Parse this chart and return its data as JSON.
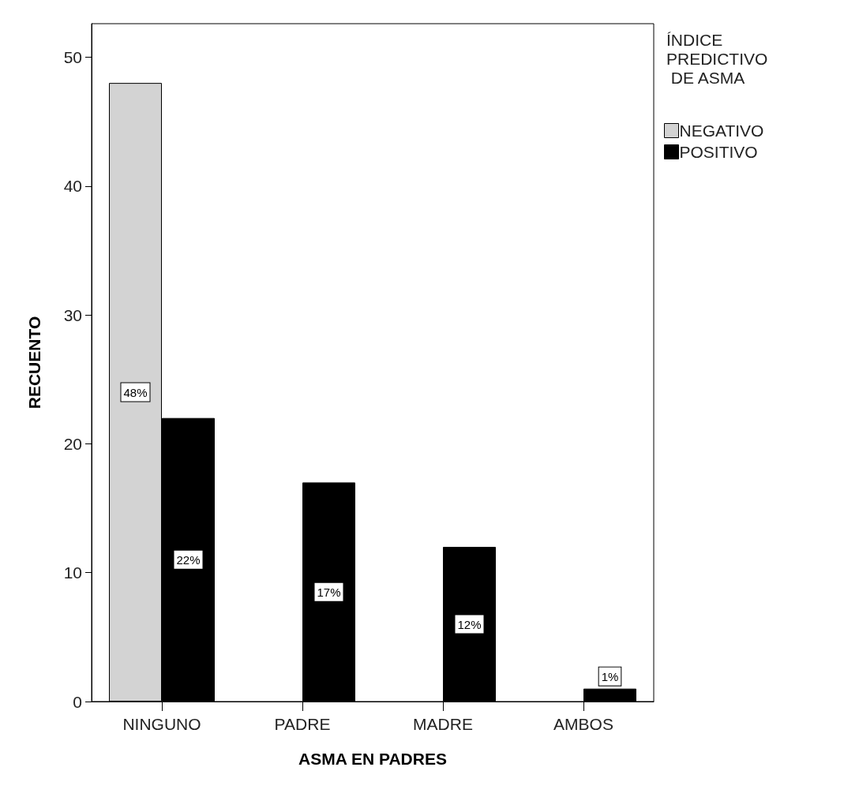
{
  "chart_data": {
    "type": "bar",
    "xlabel": "ASMA EN PADRES",
    "ylabel": "RECUENTO",
    "legend_title": "ÍNDICE PREDICTIVO DE ASMA",
    "categories": [
      "NINGUNO",
      "PADRE",
      "MADRE",
      "AMBOS"
    ],
    "series": [
      {
        "name": "NEGATIVO",
        "color": "#d3d3d3",
        "values": [
          48,
          null,
          null,
          null
        ],
        "value_labels": [
          "48%",
          null,
          null,
          null
        ]
      },
      {
        "name": "POSITIVO",
        "color": "#000000",
        "values": [
          22,
          17,
          12,
          1
        ],
        "value_labels": [
          "22%",
          "17%",
          "12%",
          "1%"
        ]
      }
    ],
    "ylim": [
      0,
      52.6
    ],
    "yticks": [
      0,
      10,
      20,
      30,
      40,
      50
    ],
    "grid": false,
    "legend": "top right"
  }
}
